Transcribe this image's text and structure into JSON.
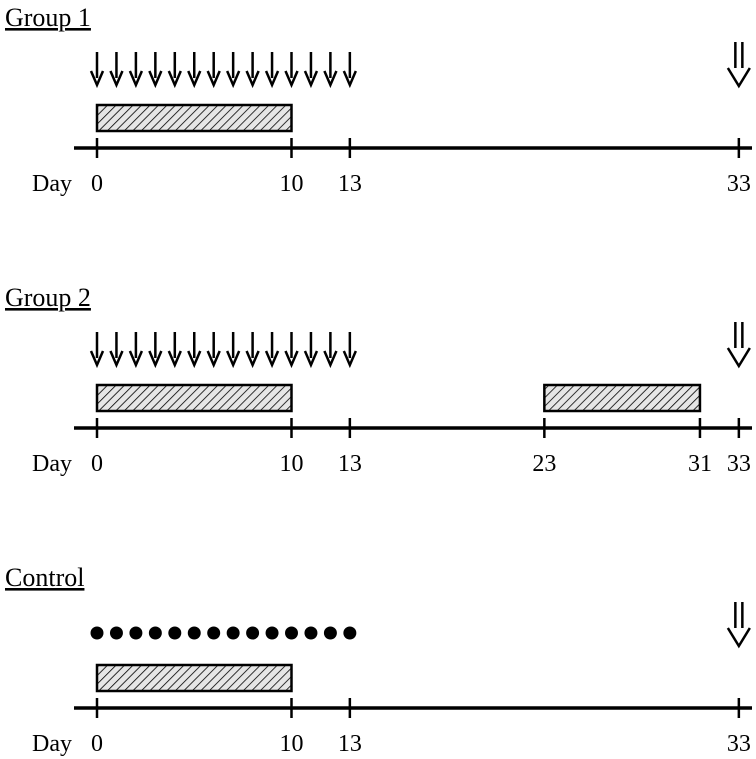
{
  "day_label": "Day",
  "groups": [
    {
      "title": "Group 1",
      "marker": "arrow",
      "marker_days": [
        0,
        1,
        2,
        3,
        4,
        5,
        6,
        7,
        8,
        9,
        10,
        11,
        12,
        13
      ],
      "bars": [
        {
          "start": 0,
          "end": 10
        }
      ],
      "ticks": [
        0,
        10,
        13,
        33
      ],
      "final_marker_day": 33
    },
    {
      "title": "Group 2",
      "marker": "arrow",
      "marker_days": [
        0,
        1,
        2,
        3,
        4,
        5,
        6,
        7,
        8,
        9,
        10,
        11,
        12,
        13
      ],
      "bars": [
        {
          "start": 0,
          "end": 10
        },
        {
          "start": 23,
          "end": 31
        }
      ],
      "ticks": [
        0,
        10,
        13,
        23,
        31,
        33
      ],
      "final_marker_day": 33
    },
    {
      "title": "Control",
      "marker": "dot",
      "marker_days": [
        0,
        1,
        2,
        3,
        4,
        5,
        6,
        7,
        8,
        9,
        10,
        11,
        12,
        13
      ],
      "bars": [
        {
          "start": 0,
          "end": 10
        }
      ],
      "ticks": [
        0,
        10,
        13,
        33
      ],
      "final_marker_day": 33
    }
  ],
  "colors": {
    "line": "#000000",
    "bar_fill": "#e6e6e6",
    "hatch": "#000000"
  },
  "icons": {
    "daily_marker": "down-arrow-icon",
    "control_marker": "dot-icon",
    "final_marker": "double-down-arrow-icon"
  }
}
